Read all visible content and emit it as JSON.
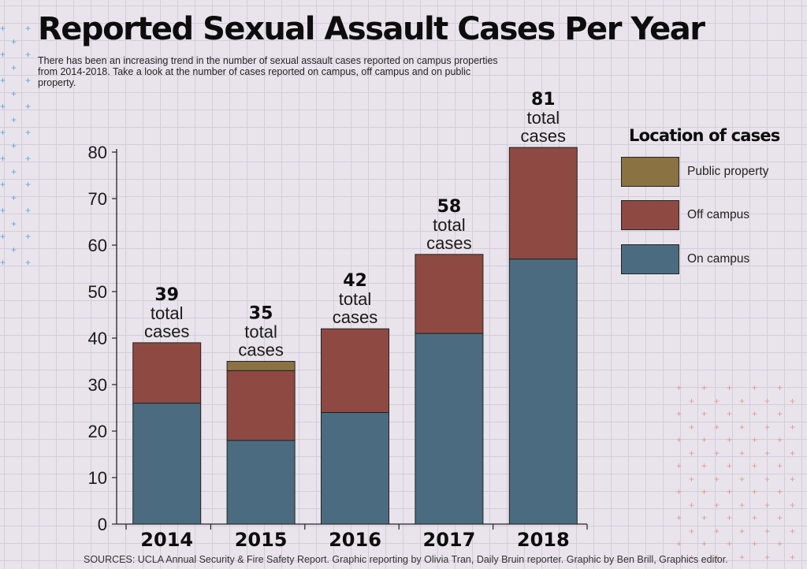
{
  "title": "Reported Sexual Assault Cases Per Year",
  "subtitle": "There has been an increasing trend in the number of sexual assault cases reported on campus properties from 2014-2018. Take a look at the number of cases reported on campus, off campus and on public property.",
  "sources": "SOURCES: UCLA Annual Security & Fire Safety Report. Graphic reporting by Olivia Tran, Daily Bruin reporter. Graphic by Ben Brill, Graphics editor.",
  "legend_title": "Location of cases",
  "colors": {
    "on_campus": "#4b6c80",
    "off_campus": "#8e4a42",
    "public_property": "#8a7243",
    "background": "#e9e4ec",
    "plus_blue": "#5aa8df",
    "plus_red": "#e09b8e"
  },
  "chart_data": {
    "type": "bar",
    "stacked": true,
    "categories": [
      "2014",
      "2015",
      "2016",
      "2017",
      "2018"
    ],
    "series": [
      {
        "name": "On campus",
        "values": [
          26,
          18,
          24,
          41,
          57
        ]
      },
      {
        "name": "Off campus",
        "values": [
          13,
          15,
          18,
          17,
          24
        ]
      },
      {
        "name": "Public property",
        "values": [
          0,
          2,
          0,
          0,
          0
        ]
      }
    ],
    "totals": [
      39,
      35,
      42,
      58,
      81
    ],
    "total_label_suffix": [
      "total",
      "cases"
    ],
    "ylim": [
      0,
      80
    ],
    "yticks": [
      0,
      10,
      20,
      30,
      40,
      50,
      60,
      70,
      80
    ],
    "xlabel": "",
    "ylabel": "",
    "legend": "right",
    "legend_order": [
      "Public property",
      "Off campus",
      "On campus"
    ],
    "grid": true
  }
}
